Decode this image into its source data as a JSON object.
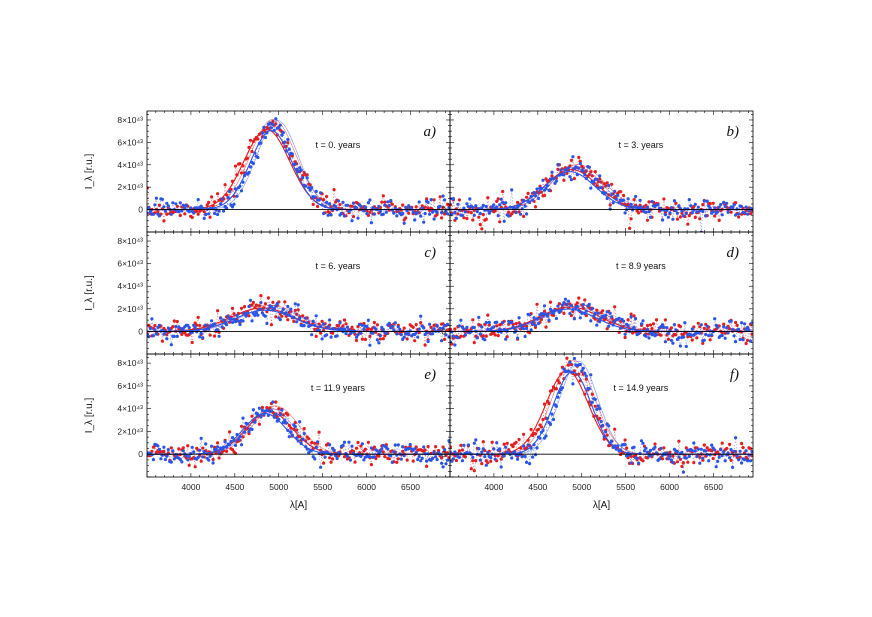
{
  "chart_data": {
    "type": "scatter",
    "figure": {
      "xlabel": "λ[A]",
      "ylabel": "I_λ [r.u.]",
      "xlim": [
        3500,
        6950
      ],
      "ylim": [
        -2e+43,
        8.8e+43
      ],
      "x_ticks": [
        4000,
        4500,
        5000,
        5500,
        6000,
        6500
      ],
      "x_tick_labels": [
        "4000",
        "4500",
        "5000",
        "5500",
        "6000",
        "6500"
      ],
      "y_ticks": [
        0,
        2e+43,
        4e+43,
        6e+43,
        8e+43
      ],
      "y_tick_labels": [
        "0",
        "2×10⁴³",
        "4×10⁴³",
        "6×10⁴³",
        "8×10⁴³"
      ],
      "series_colors": {
        "red": "#e41e1e",
        "blue": "#2a55e6",
        "baseline": "#000000"
      }
    },
    "panels": [
      {
        "label": "a)",
        "time": "t = 0. years",
        "series": [
          {
            "name": "red",
            "color": "#e41e1e",
            "center": 4900,
            "sigma": 260,
            "amplitude": 7.6e+43,
            "noise": 9e+42
          },
          {
            "name": "blue",
            "color": "#2a55e6",
            "center": 4950,
            "sigma": 235,
            "amplitude": 7.5e+43,
            "noise": 9e+42
          }
        ]
      },
      {
        "label": "b)",
        "time": "t = 3. years",
        "series": [
          {
            "name": "red",
            "color": "#e41e1e",
            "center": 4920,
            "sigma": 300,
            "amplitude": 3.8e+43,
            "noise": 9e+42
          },
          {
            "name": "blue",
            "color": "#2a55e6",
            "center": 4900,
            "sigma": 290,
            "amplitude": 3.6e+43,
            "noise": 9e+42
          }
        ]
      },
      {
        "label": "c)",
        "time": "t = 6. years",
        "series": [
          {
            "name": "red",
            "color": "#e41e1e",
            "center": 4850,
            "sigma": 360,
            "amplitude": 2.2e+43,
            "noise": 9e+42
          },
          {
            "name": "blue",
            "color": "#2a55e6",
            "center": 4880,
            "sigma": 340,
            "amplitude": 2e+43,
            "noise": 9e+42
          }
        ]
      },
      {
        "label": "d)",
        "time": "t = 8.9 years",
        "series": [
          {
            "name": "red",
            "color": "#e41e1e",
            "center": 4900,
            "sigma": 340,
            "amplitude": 2.3e+43,
            "noise": 9e+42
          },
          {
            "name": "blue",
            "color": "#2a55e6",
            "center": 4880,
            "sigma": 320,
            "amplitude": 2.1e+43,
            "noise": 9e+42
          }
        ]
      },
      {
        "label": "e)",
        "time": "t = 11.9 years",
        "series": [
          {
            "name": "red",
            "color": "#e41e1e",
            "center": 4930,
            "sigma": 260,
            "amplitude": 4e+43,
            "noise": 9e+42
          },
          {
            "name": "blue",
            "color": "#2a55e6",
            "center": 4880,
            "sigma": 250,
            "amplitude": 3.8e+43,
            "noise": 9e+42
          }
        ]
      },
      {
        "label": "f)",
        "time": "t = 14.9 years",
        "series": [
          {
            "name": "red",
            "color": "#e41e1e",
            "center": 4870,
            "sigma": 240,
            "amplitude": 7.8e+43,
            "noise": 9e+42
          },
          {
            "name": "blue",
            "color": "#2a55e6",
            "center": 4930,
            "sigma": 215,
            "amplitude": 7.7e+43,
            "noise": 9e+42
          }
        ]
      }
    ]
  }
}
